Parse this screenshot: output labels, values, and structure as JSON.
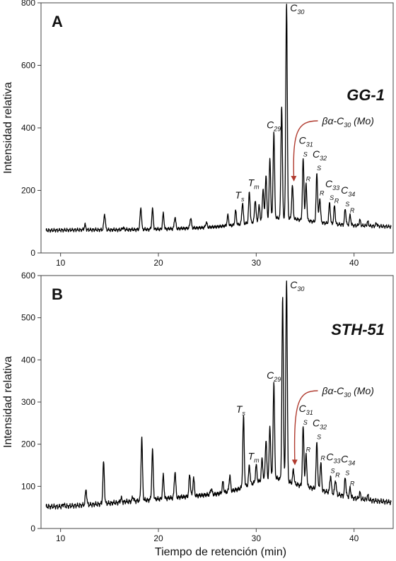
{
  "figure": {
    "xlabel": "Tiempo de retención (min)",
    "colors": {
      "trace": "#000000",
      "annotation_arrow": "#b03a2e",
      "frame": "#444444"
    }
  },
  "chart_data": [
    {
      "type": "line",
      "panel_letter": "A",
      "sample": "GG-1",
      "xlabel": "",
      "ylabel": "Intensidad relativa",
      "xlim": [
        8,
        44
      ],
      "ylim": [
        0,
        800
      ],
      "xticks": [
        10,
        20,
        30,
        40
      ],
      "yticks": [
        0,
        200,
        400,
        600,
        800
      ],
      "tick_labels_x": [
        "10",
        "20",
        "30",
        "40"
      ],
      "tick_labels_y": [
        "0",
        "200",
        "400",
        "600",
        "800"
      ],
      "baseline": [
        [
          8.5,
          72
        ],
        [
          12,
          74
        ],
        [
          16,
          74
        ],
        [
          20,
          76
        ],
        [
          24,
          80
        ],
        [
          26,
          84
        ],
        [
          28,
          90
        ],
        [
          30,
          100
        ],
        [
          32,
          112
        ],
        [
          34,
          108
        ],
        [
          36,
          100
        ],
        [
          38,
          92
        ],
        [
          40,
          88
        ],
        [
          42,
          86
        ],
        [
          44,
          84
        ]
      ],
      "peaks": [
        [
          12.5,
          90
        ],
        [
          14.5,
          125
        ],
        [
          16.4,
          82
        ],
        [
          18.2,
          145
        ],
        [
          19.4,
          140
        ],
        [
          20.5,
          125
        ],
        [
          21.7,
          115
        ],
        [
          23.3,
          112
        ],
        [
          24.9,
          98
        ],
        [
          27.1,
          120
        ],
        [
          27.9,
          135
        ],
        [
          28.6,
          160
        ],
        [
          29.3,
          195
        ],
        [
          29.9,
          170
        ],
        [
          30.3,
          150
        ],
        [
          30.7,
          205
        ],
        [
          31.0,
          250
        ],
        [
          31.4,
          300
        ],
        [
          31.8,
          385
        ],
        [
          32.6,
          470
        ],
        [
          33.1,
          800
        ],
        [
          33.7,
          215
        ],
        [
          34.8,
          300
        ],
        [
          35.1,
          220
        ],
        [
          36.2,
          255
        ],
        [
          36.5,
          175
        ],
        [
          37.5,
          160
        ],
        [
          38.0,
          150
        ],
        [
          39.1,
          140
        ],
        [
          39.6,
          120
        ],
        [
          40.6,
          105
        ],
        [
          41.4,
          100
        ],
        [
          42.3,
          95
        ]
      ],
      "labels": [
        {
          "main": "C",
          "sub": "30",
          "x": 33.1,
          "y": 800
        },
        {
          "main": "C",
          "sub": "29",
          "x": 31.8,
          "y": 385
        },
        {
          "main": "T",
          "sub": "s",
          "x": 28.6,
          "y": 160
        },
        {
          "main": "T",
          "sub": "m",
          "x": 29.3,
          "y": 195
        },
        {
          "main": "C",
          "sub": "31",
          "x": 34.8,
          "y": 300
        },
        {
          "main": "C",
          "sub": "32",
          "x": 36.2,
          "y": 255
        },
        {
          "main": "C",
          "sub": "33",
          "x": 37.5,
          "y": 160
        },
        {
          "main": "C",
          "sub": "34",
          "x": 39.1,
          "y": 140
        }
      ],
      "sr_marks": [
        {
          "text": "S",
          "x": 34.8,
          "y": 300
        },
        {
          "text": "R",
          "x": 35.1,
          "y": 220
        },
        {
          "text": "S",
          "x": 36.2,
          "y": 255
        },
        {
          "text": "R",
          "x": 36.5,
          "y": 175
        },
        {
          "text": "S",
          "x": 37.5,
          "y": 160
        },
        {
          "text": "R",
          "x": 38.0,
          "y": 150
        },
        {
          "text": "S",
          "x": 39.1,
          "y": 140
        },
        {
          "text": "R",
          "x": 39.6,
          "y": 120
        }
      ],
      "annotation": {
        "pre": "βα-C",
        "sub": "30",
        "post": " (Mo)",
        "target_x": 33.7,
        "target_y": 215
      }
    },
    {
      "type": "line",
      "panel_letter": "B",
      "sample": "STH-51",
      "xlabel": "Tiempo de retención (min)",
      "ylabel": "Intensidad relativa",
      "xlim": [
        8,
        44
      ],
      "ylim": [
        0,
        600
      ],
      "xticks": [
        10,
        20,
        30,
        40
      ],
      "yticks": [
        0,
        100,
        200,
        300,
        400,
        500,
        600
      ],
      "tick_labels_x": [
        "10",
        "20",
        "30",
        "40"
      ],
      "tick_labels_y": [
        "0",
        "100",
        "200",
        "300",
        "400",
        "500",
        "600"
      ],
      "baseline": [
        [
          8.5,
          52
        ],
        [
          10,
          52
        ],
        [
          12,
          55
        ],
        [
          14,
          58
        ],
        [
          16,
          62
        ],
        [
          18,
          66
        ],
        [
          20,
          70
        ],
        [
          22,
          74
        ],
        [
          24,
          78
        ],
        [
          26,
          82
        ],
        [
          28,
          92
        ],
        [
          30,
          110
        ],
        [
          32,
          120
        ],
        [
          34,
          105
        ],
        [
          36,
          95
        ],
        [
          38,
          82
        ],
        [
          40,
          72
        ],
        [
          42,
          66
        ],
        [
          44,
          62
        ]
      ],
      "peaks": [
        [
          10.3,
          58
        ],
        [
          12.6,
          92
        ],
        [
          14.4,
          157
        ],
        [
          16.2,
          72
        ],
        [
          17.4,
          75
        ],
        [
          18.3,
          215
        ],
        [
          19.4,
          185
        ],
        [
          20.5,
          125
        ],
        [
          21.7,
          135
        ],
        [
          23.2,
          128
        ],
        [
          23.6,
          120
        ],
        [
          25.4,
          95
        ],
        [
          26.6,
          110
        ],
        [
          27.3,
          125
        ],
        [
          28.7,
          265
        ],
        [
          29.3,
          150
        ],
        [
          30.0,
          150
        ],
        [
          30.6,
          165
        ],
        [
          31.0,
          210
        ],
        [
          31.4,
          240
        ],
        [
          31.8,
          345
        ],
        [
          32.7,
          545
        ],
        [
          33.1,
          590
        ],
        [
          33.8,
          140
        ],
        [
          34.8,
          240
        ],
        [
          35.1,
          175
        ],
        [
          36.2,
          205
        ],
        [
          36.6,
          155
        ],
        [
          37.6,
          125
        ],
        [
          38.1,
          115
        ],
        [
          39.1,
          120
        ],
        [
          39.6,
          95
        ],
        [
          40.6,
          85
        ],
        [
          41.4,
          78
        ]
      ],
      "labels": [
        {
          "main": "C",
          "sub": "30",
          "x": 33.1,
          "y": 590
        },
        {
          "main": "C",
          "sub": "29",
          "x": 31.8,
          "y": 345
        },
        {
          "main": "T",
          "sub": "s",
          "x": 28.7,
          "y": 265
        },
        {
          "main": "T",
          "sub": "m",
          "x": 29.3,
          "y": 150
        },
        {
          "main": "C",
          "sub": "31",
          "x": 34.8,
          "y": 240
        },
        {
          "main": "C",
          "sub": "32",
          "x": 36.2,
          "y": 205
        },
        {
          "main": "C",
          "sub": "33",
          "x": 37.6,
          "y": 125
        },
        {
          "main": "C",
          "sub": "34",
          "x": 39.1,
          "y": 120
        }
      ],
      "sr_marks": [
        {
          "text": "S",
          "x": 34.8,
          "y": 240
        },
        {
          "text": "R",
          "x": 35.1,
          "y": 175
        },
        {
          "text": "S",
          "x": 36.2,
          "y": 205
        },
        {
          "text": "R",
          "x": 36.6,
          "y": 155
        },
        {
          "text": "S",
          "x": 37.6,
          "y": 125
        },
        {
          "text": "R",
          "x": 38.1,
          "y": 115
        },
        {
          "text": "S",
          "x": 39.1,
          "y": 120
        },
        {
          "text": "R",
          "x": 39.6,
          "y": 95
        }
      ],
      "annotation": {
        "pre": "βα-C",
        "sub": "30",
        "post": " (Mo)",
        "target_x": 33.8,
        "target_y": 140
      }
    }
  ]
}
